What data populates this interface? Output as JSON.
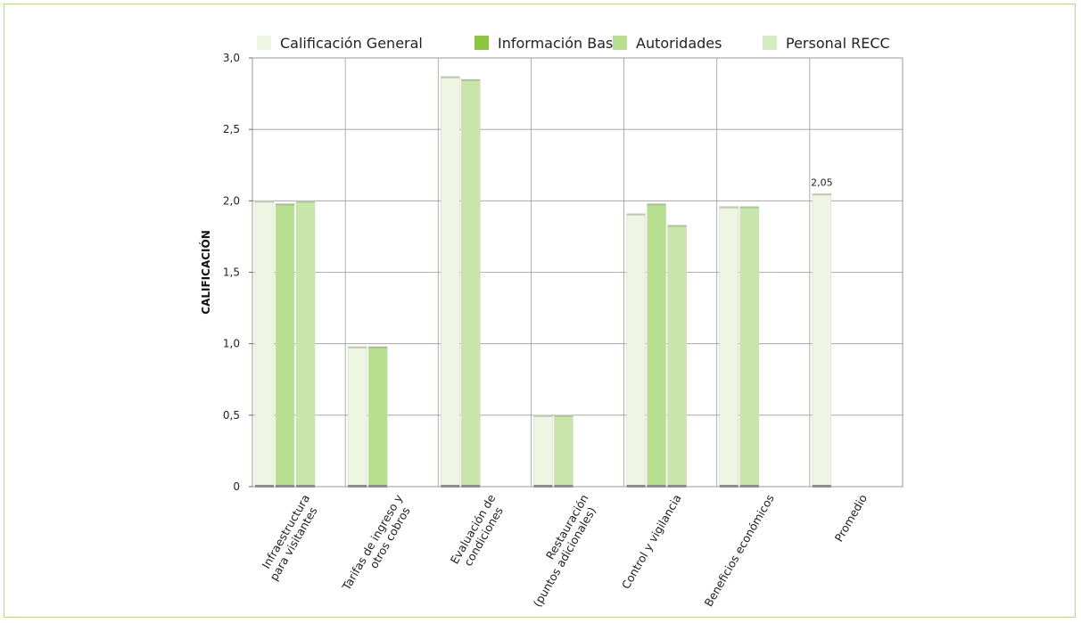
{
  "chart_data": {
    "type": "bar",
    "ylabel": "CALIFICACIÓN",
    "ylim": [
      0,
      3.0
    ],
    "yticks": [
      "0",
      "0,5",
      "1,0",
      "1,5",
      "2,0",
      "2,5",
      "3,0"
    ],
    "grid": true,
    "legend_position": "top",
    "categories": [
      [
        "Infraestructura",
        "para visitantes"
      ],
      [
        "Tarifas de ingreso y",
        "otros cobros"
      ],
      [
        "Evaluación de",
        "condiciones"
      ],
      [
        "Restauración",
        "(puntos adicionales)"
      ],
      [
        "Control y vigilancia"
      ],
      [
        "Beneficios económicos"
      ],
      [
        "Promedio"
      ]
    ],
    "series": [
      {
        "name": "Calificación General",
        "color": "#eef5e3",
        "values": [
          2.0,
          0.98,
          2.87,
          0.5,
          1.91,
          1.96,
          2.05
        ]
      },
      {
        "name": "Información Base",
        "color": "#b7df8f",
        "values": [
          1.98,
          0.98,
          null,
          null,
          1.98,
          null,
          null
        ]
      },
      {
        "name": "Autoridades",
        "color": "#c9e6aa",
        "values": [
          2.0,
          null,
          2.85,
          0.5,
          1.83,
          1.96,
          null
        ]
      },
      {
        "name": "Personal RECC",
        "color": "#d9edc6",
        "values": [
          null,
          null,
          null,
          null,
          null,
          null,
          null
        ]
      }
    ],
    "legend_swatches": [
      "#eef5e3",
      "#8cc63f",
      "#b7df8f",
      "#d5ebc0"
    ],
    "data_labels": [
      {
        "category_index": 6,
        "series_index": 0,
        "text": "2,05"
      }
    ]
  }
}
